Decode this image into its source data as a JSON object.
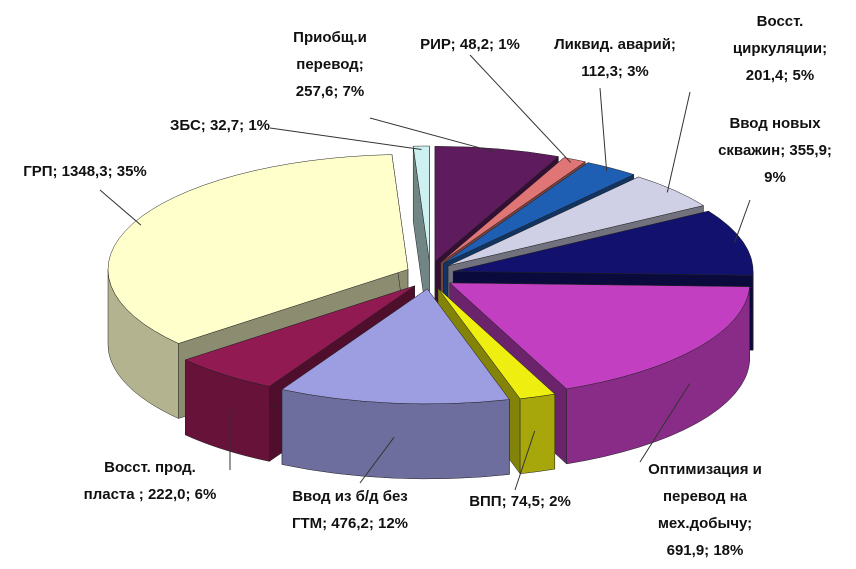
{
  "chart_data": {
    "type": "pie",
    "values": [
      257.6,
      48.2,
      112.3,
      201.4,
      355.9,
      691.9,
      74.5,
      476.2,
      222.0,
      1348.3,
      32.7
    ],
    "value_labels": [
      "Приобщ.и\nперевод;\n257,6; 7%",
      "РИР; 48,2; 1%",
      "Ликвид. аварий;\n112,3; 3%",
      "Восст.\nциркуляции;\n201,4; 5%",
      "Ввод новых\nскважин; 355,9;\n9%",
      "Оптимизация и\nперевод на\nмех.добычу;\n691,9; 18%",
      "ВПП; 74,5; 2%",
      "Ввод из б/д без\nГТМ; 476,2; 12%",
      "Восст. прод.\nпласта ; 222,0; 6%",
      "ГРП; 1348,3; 35%",
      "ЗБС; 32,7; 1%"
    ],
    "colors": [
      "#5e1b5e",
      "#e07575",
      "#1e5fb4",
      "#cfcfe6",
      "#12126e",
      "#c23fc2",
      "#eeee10",
      "#9d9de2",
      "#921a52",
      "#ffffcc",
      "#cdf1f1"
    ]
  }
}
